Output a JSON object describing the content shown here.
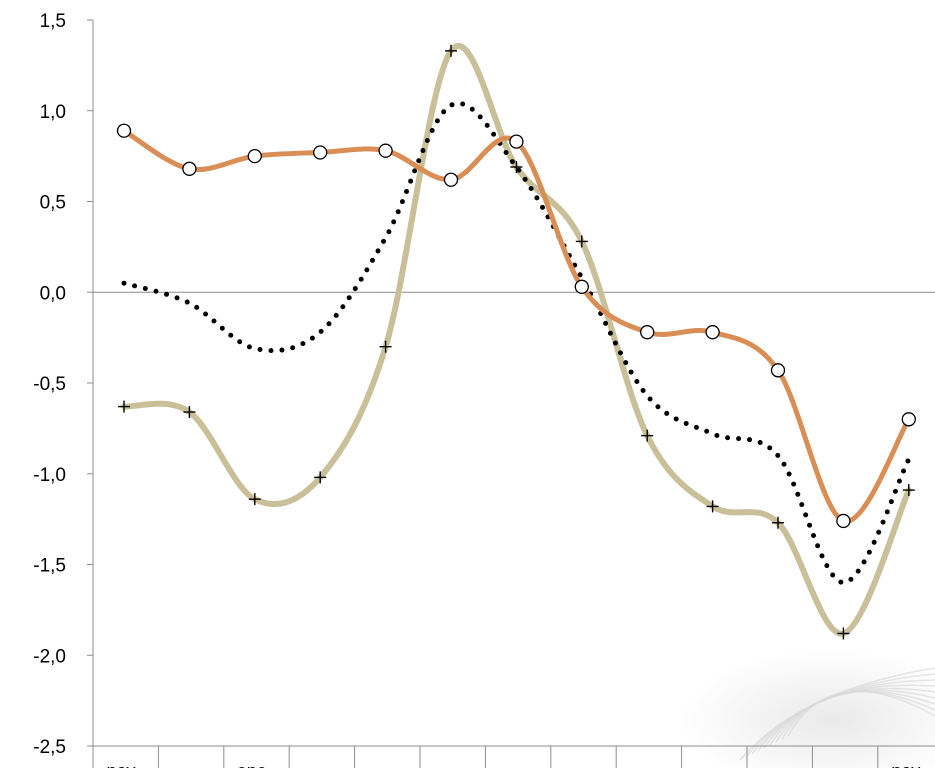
{
  "chart_data": {
    "type": "line",
    "title": "",
    "xlabel": "",
    "ylabel": "",
    "ylim": [
      -2.5,
      1.5
    ],
    "y_ticks": [
      "1,5",
      "1,0",
      "0,5",
      "0,0",
      "-0,5",
      "-1,0",
      "-1,5",
      "-2,0",
      "-2,5"
    ],
    "y_tick_values": [
      1.5,
      1.0,
      0.5,
      0.0,
      -0.5,
      -1.0,
      -1.5,
      -2.0,
      -2.5
    ],
    "x_tick_labels": [
      "nov-",
      "",
      "ene-",
      "",
      "",
      "",
      "",
      "",
      "",
      "",
      "",
      "",
      "nov-"
    ],
    "zero_line": true,
    "grid": false,
    "legend": "none",
    "series": [
      {
        "style": "solid-thick",
        "color": "#c9c09a",
        "marker": "plus",
        "values": [
          -0.63,
          -0.66,
          -1.14,
          -1.02,
          -0.3,
          1.33,
          0.69,
          0.28,
          -0.79,
          -1.18,
          -1.27,
          -1.88,
          -1.09
        ]
      },
      {
        "style": "dotted",
        "color": "#000000",
        "marker": "none",
        "values": [
          0.05,
          -0.06,
          -0.31,
          -0.22,
          0.3,
          1.03,
          0.69,
          0.08,
          -0.57,
          -0.78,
          -0.9,
          -1.6,
          -0.92
        ]
      },
      {
        "style": "solid",
        "color": "#d98e55",
        "marker": "circle",
        "values": [
          0.89,
          0.68,
          0.75,
          0.77,
          0.78,
          0.62,
          0.83,
          0.03,
          -0.22,
          -0.22,
          -0.43,
          -1.26,
          -0.7
        ]
      }
    ]
  }
}
